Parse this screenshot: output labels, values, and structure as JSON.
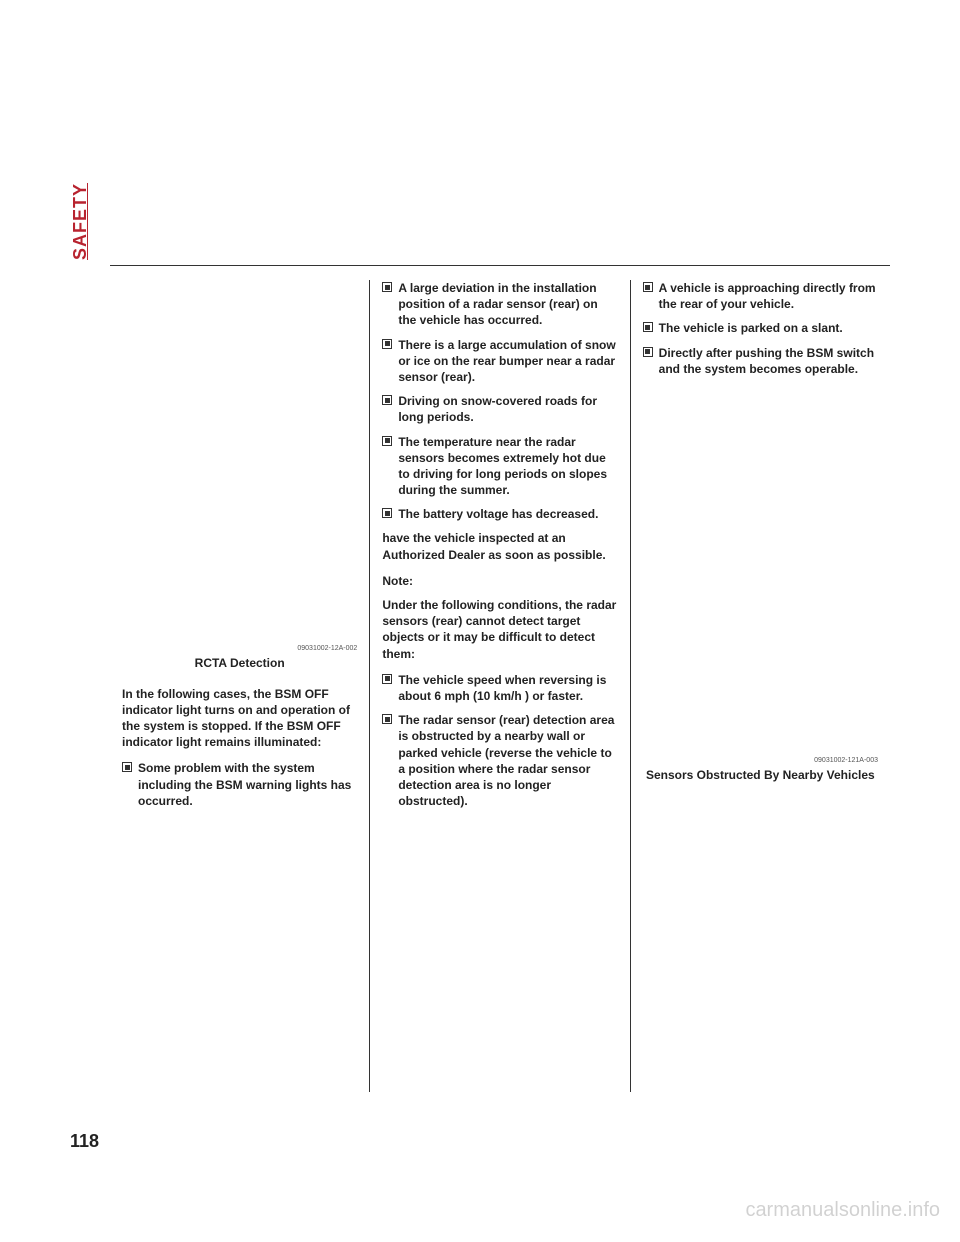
{
  "tab": "SAFETY",
  "pageNumber": "118",
  "watermark": "carmanualsonline.info",
  "col1": {
    "figureId": "09031002-12A-002",
    "figureCaption": "RCTA Detection",
    "intro": "In the following cases, the BSM OFF indicator light turns on and operation of the system is stopped. If the BSM OFF indicator light remains illuminated:",
    "bullets": [
      "Some problem with the system including the BSM warning lights has occurred."
    ]
  },
  "col2": {
    "bulletsA": [
      "A large deviation in the installation position of a radar sensor (rear) on the vehicle has occurred.",
      "There is a large accumulation of snow or ice on the rear bumper near a radar sensor (rear).",
      "Driving on snow-covered roads for long periods.",
      "The temperature near the radar sensors becomes extremely hot due to driving for long periods on slopes during the summer.",
      "The battery voltage has decreased."
    ],
    "paraA": "have the vehicle inspected at an Authorized Dealer as soon as possible.",
    "noteHead": "Note:",
    "notePara": "Under the following conditions, the radar sensors (rear) cannot detect target objects or it may be difficult to detect them:",
    "bulletsB": [
      "The vehicle speed when reversing is about 6 mph (10 km/h ) or faster.",
      "The radar sensor (rear) detection area is obstructed by a nearby wall or parked vehicle (reverse the vehicle to a position where the radar sensor detection area is no longer obstructed)."
    ]
  },
  "col3": {
    "bullets": [
      "A vehicle is approaching directly from the rear of your vehicle.",
      "The vehicle is parked on a slant.",
      "Directly after pushing the BSM switch and the system becomes operable."
    ],
    "figureId": "09031002-121A-003",
    "figureCaption": "Sensors Obstructed By Nearby Vehicles"
  }
}
